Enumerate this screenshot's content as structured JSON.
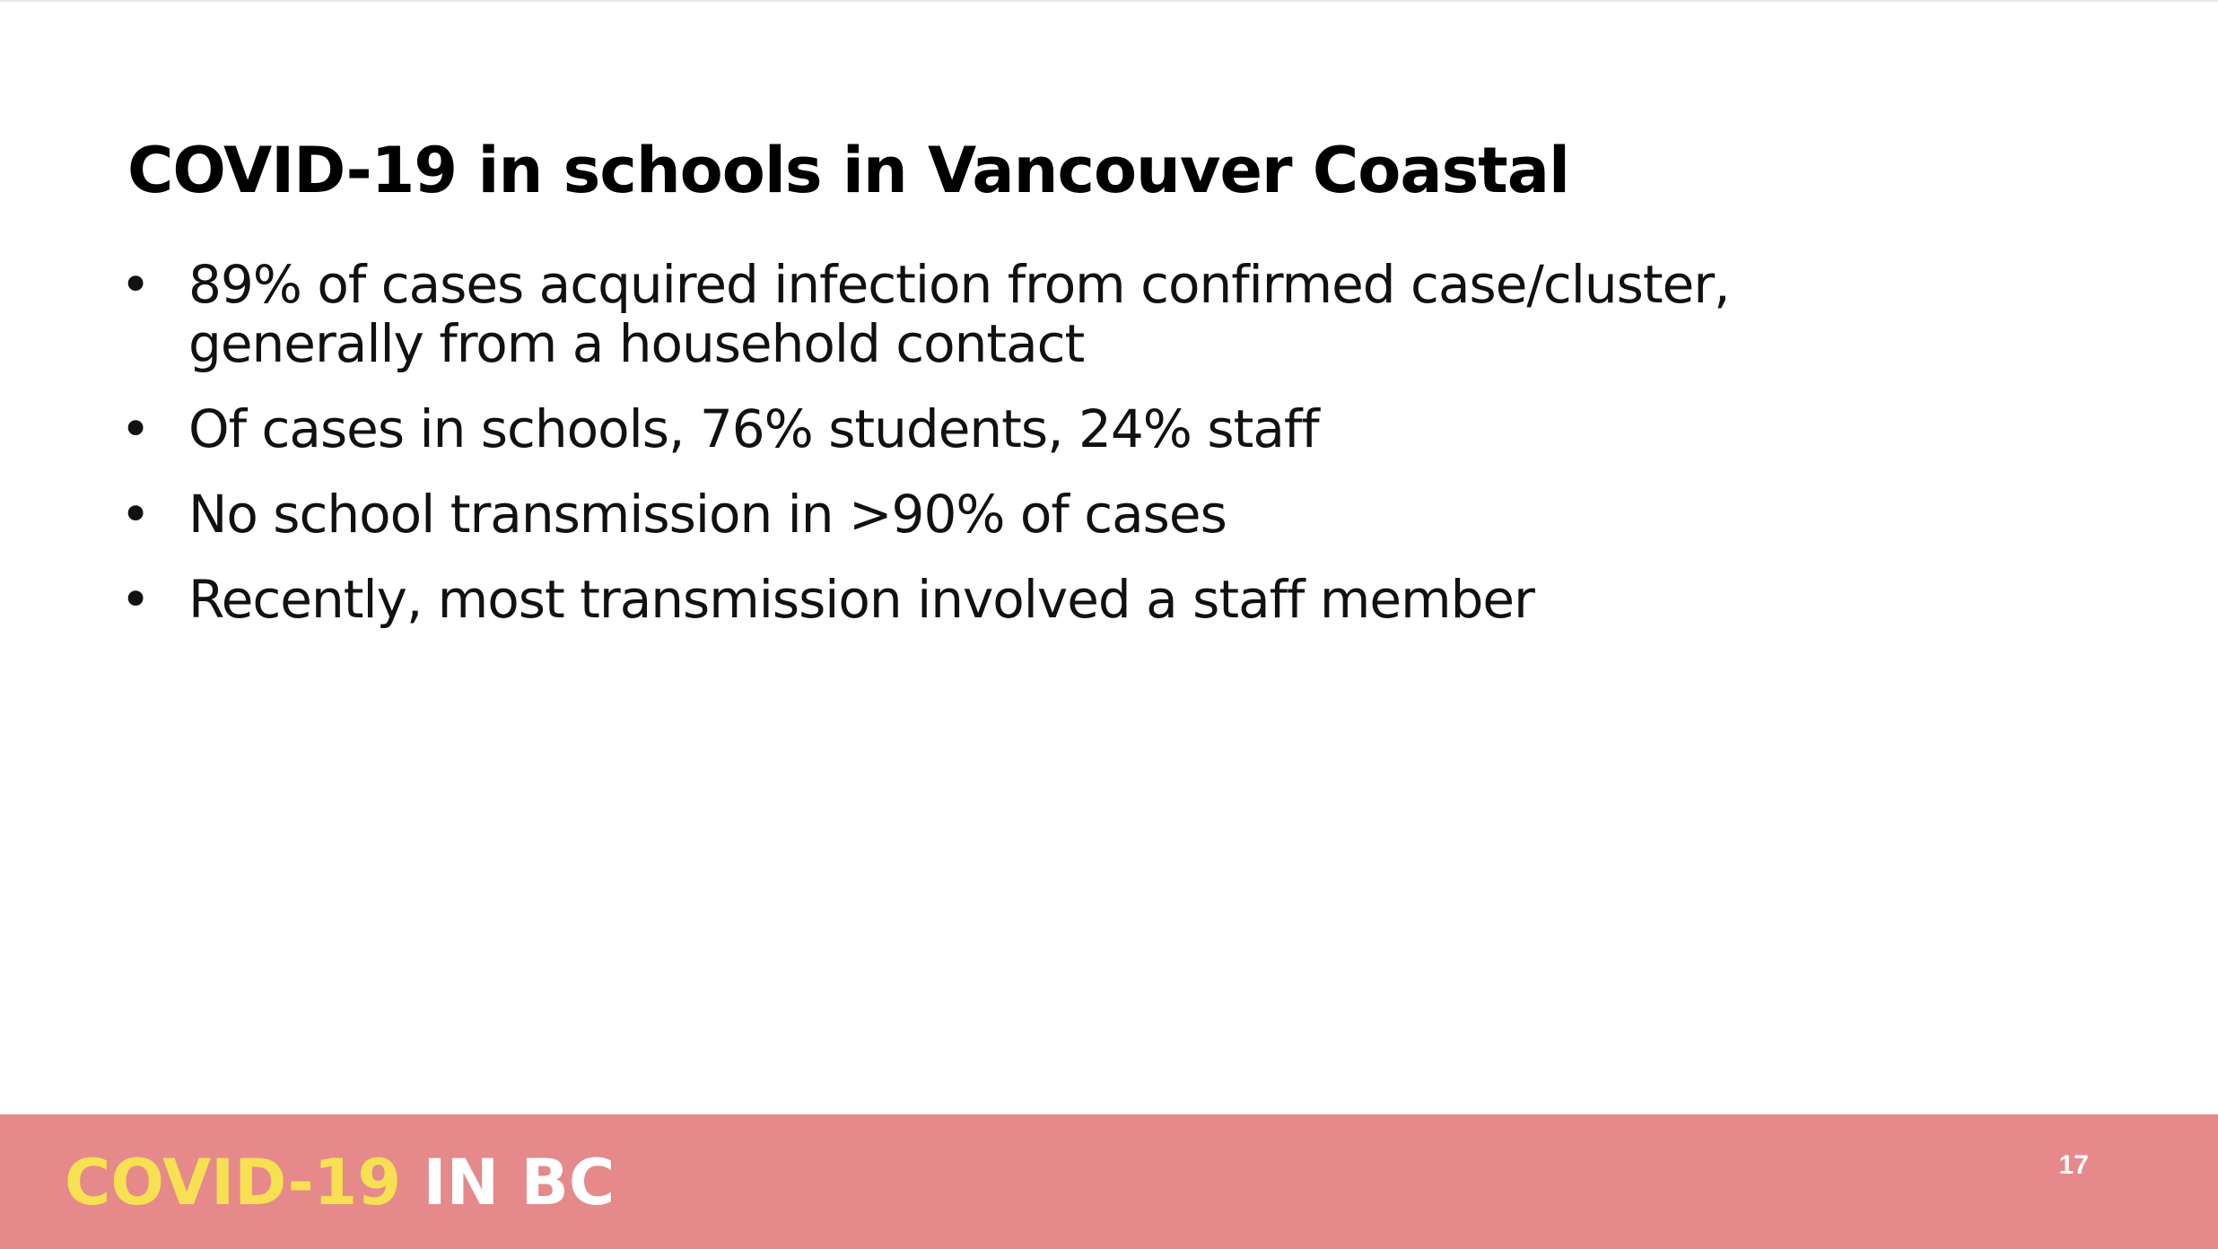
{
  "slide": {
    "title": "COVID-19 in schools in Vancouver Coastal",
    "bullet_marker": "•",
    "bullets": [
      "89% of cases acquired infection from confirmed case/cluster, generally from a household contact",
      "Of cases in schools, 76% students, 24% staff",
      "No school transmission in >90% of cases",
      "Recently, most transmission involved a staff member"
    ]
  },
  "footer": {
    "brand_primary": "COVID-19",
    "brand_secondary": "IN BC",
    "page_number": "17",
    "background_color": "#e5898a",
    "brand_primary_color": "#f7e052",
    "brand_secondary_color": "#ffffff"
  }
}
